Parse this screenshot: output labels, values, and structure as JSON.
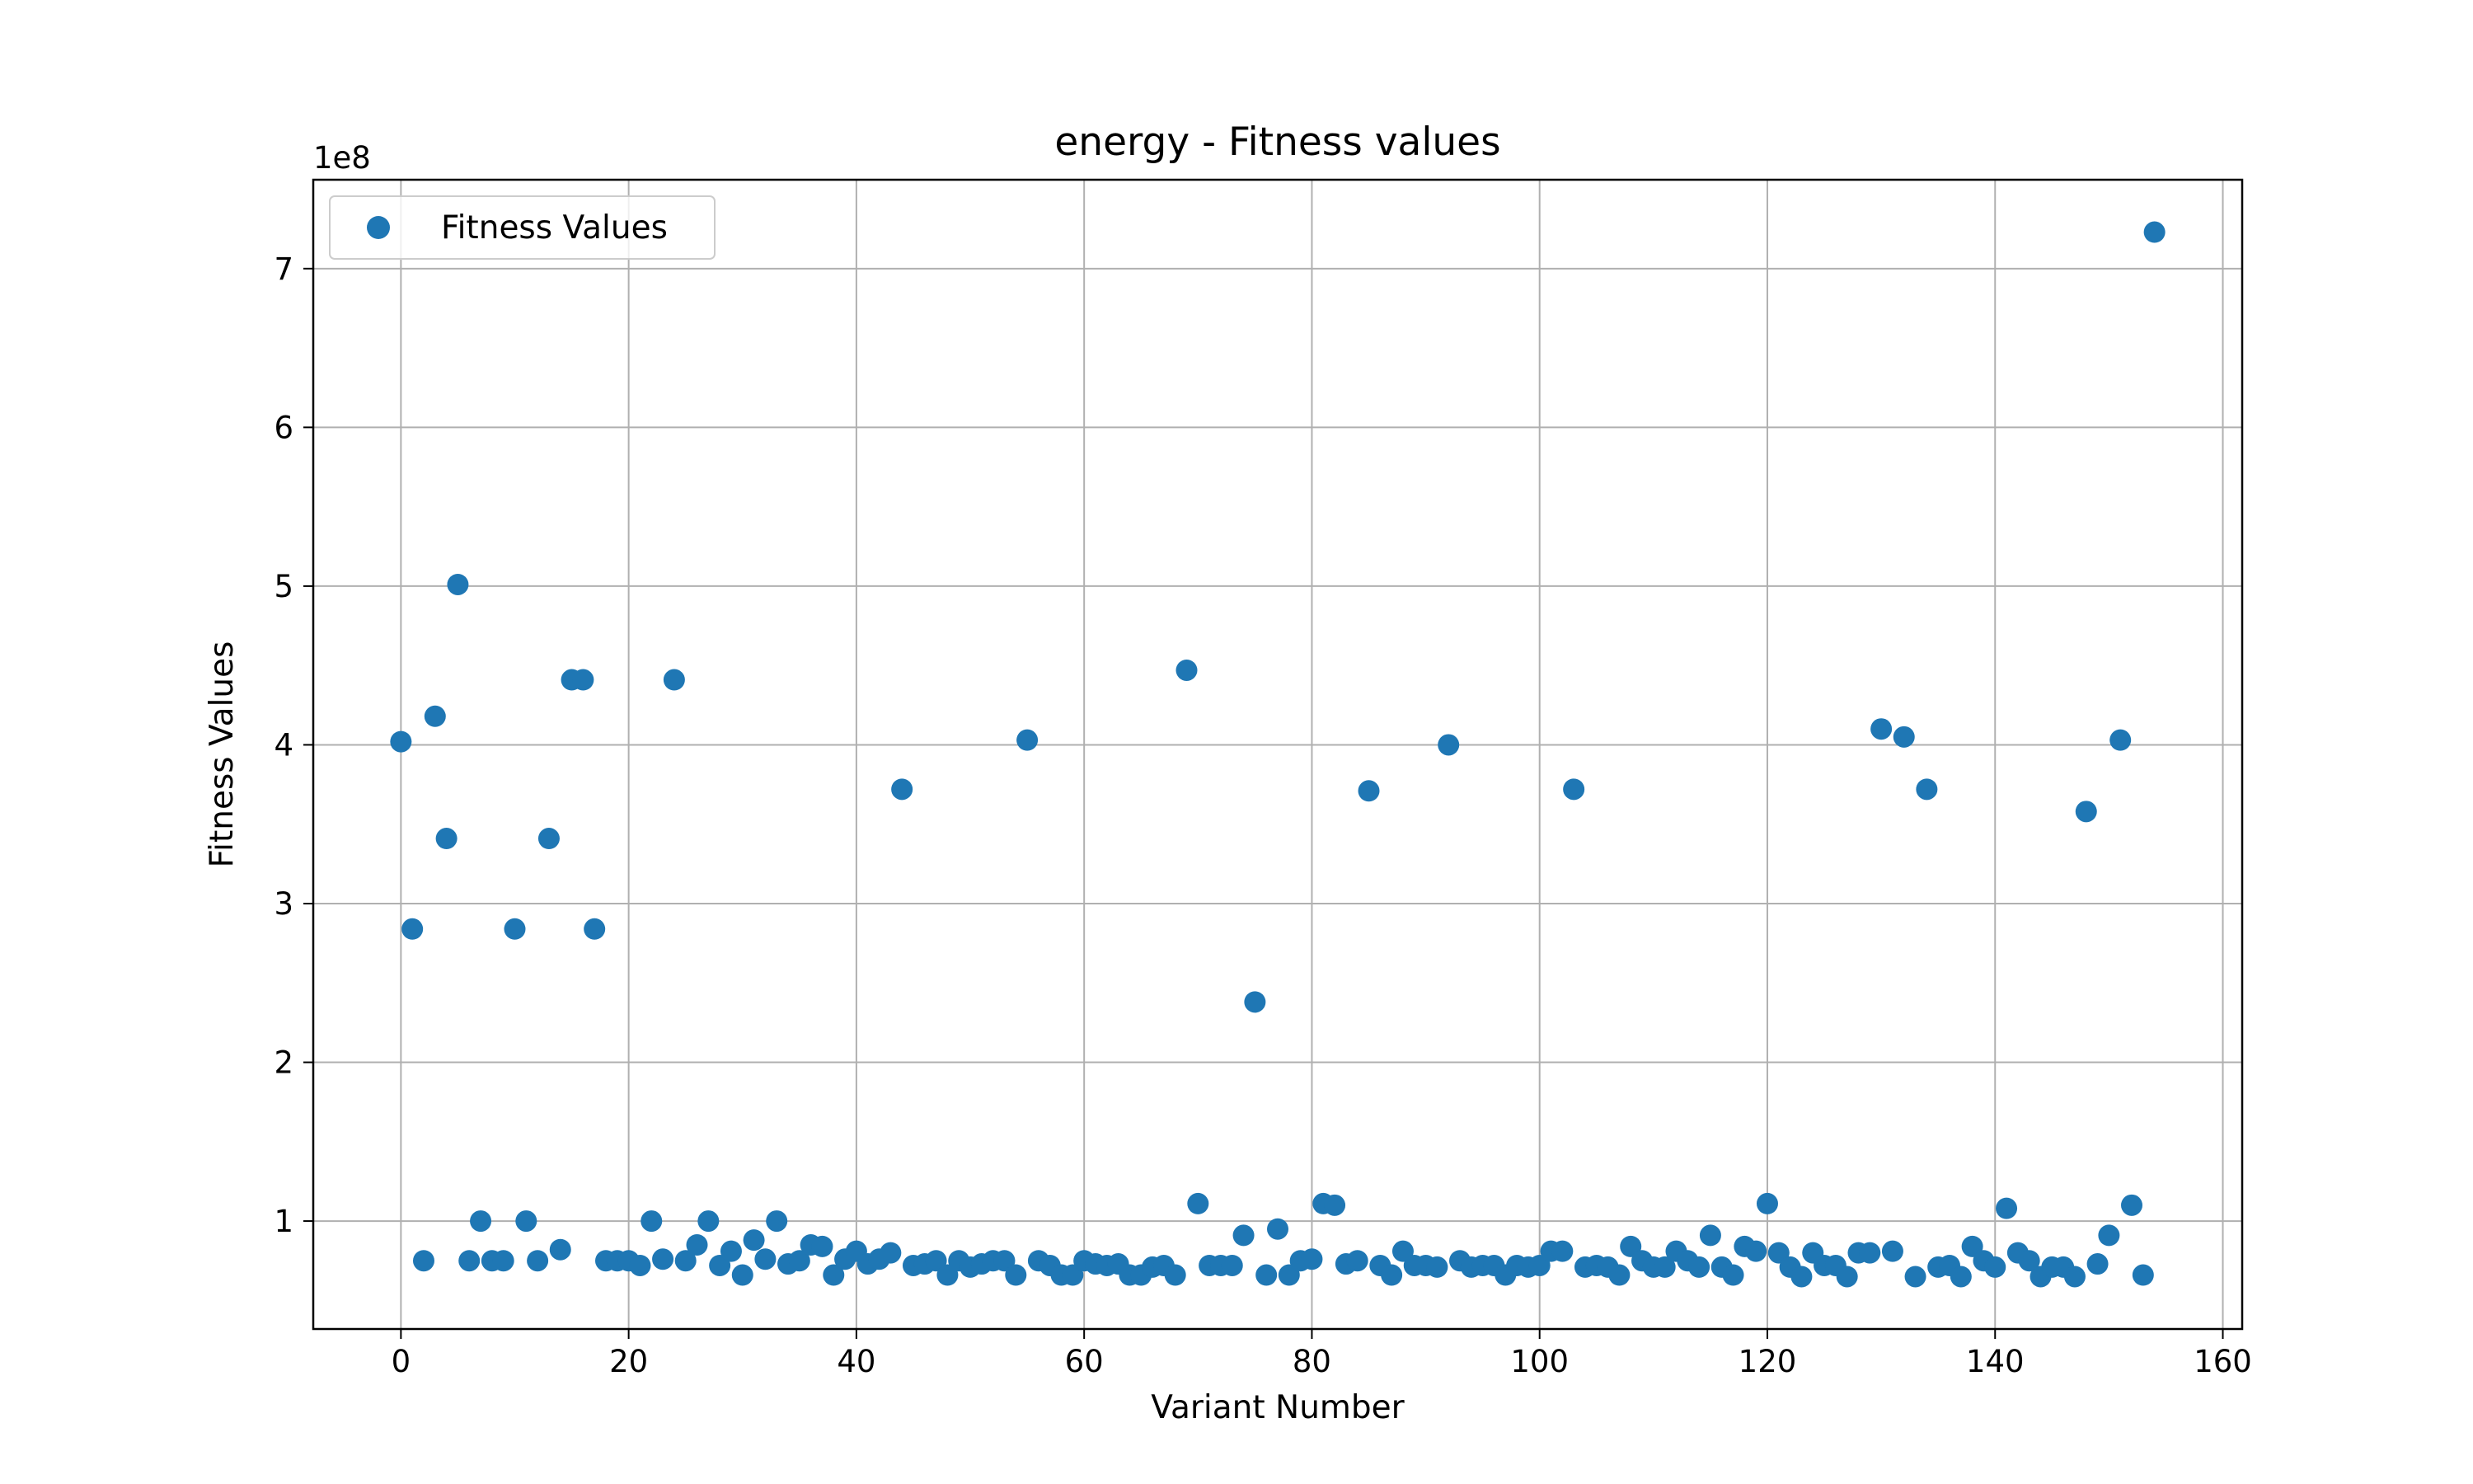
{
  "chart_data": {
    "type": "scatter",
    "title": "energy - Fitness values",
    "xlabel": "Variant Number",
    "ylabel": "Fitness Values",
    "y_offset_label": "1e8",
    "xlim": [
      -7.7,
      161.7
    ],
    "ylim": [
      0.32,
      7.56
    ],
    "xticks": [
      0,
      20,
      40,
      60,
      80,
      100,
      120,
      140,
      160
    ],
    "yticks": [
      1,
      2,
      3,
      4,
      5,
      6,
      7
    ],
    "grid": true,
    "legend": {
      "position": "top-left",
      "entries": [
        "Fitness Values"
      ]
    },
    "series": [
      {
        "name": "Fitness Values",
        "color": "#1f77b4",
        "x": [
          0,
          1,
          2,
          3,
          4,
          5,
          6,
          7,
          8,
          9,
          10,
          11,
          12,
          13,
          14,
          15,
          16,
          17,
          18,
          19,
          20,
          21,
          22,
          23,
          24,
          25,
          26,
          27,
          28,
          29,
          30,
          31,
          32,
          33,
          34,
          35,
          36,
          37,
          38,
          39,
          40,
          41,
          42,
          43,
          44,
          45,
          46,
          47,
          48,
          49,
          50,
          51,
          52,
          53,
          54,
          55,
          56,
          57,
          58,
          59,
          60,
          61,
          62,
          63,
          64,
          65,
          66,
          67,
          68,
          69,
          70,
          71,
          72,
          73,
          74,
          75,
          76,
          77,
          78,
          79,
          80,
          81,
          82,
          83,
          84,
          85,
          86,
          87,
          88,
          89,
          90,
          91,
          92,
          93,
          94,
          95,
          96,
          97,
          98,
          99,
          100,
          101,
          102,
          103,
          104,
          105,
          106,
          107,
          108,
          109,
          110,
          111,
          112,
          113,
          114,
          115,
          116,
          117,
          118,
          119,
          120,
          121,
          122,
          123,
          124,
          125,
          126,
          127,
          128,
          129,
          130,
          131,
          132,
          133,
          134,
          135,
          136,
          137,
          138,
          139,
          140,
          141,
          142,
          143,
          144,
          145,
          146,
          147,
          148,
          149,
          150,
          151,
          152,
          153,
          154
        ],
        "y": [
          4.02,
          2.84,
          0.75,
          4.18,
          3.41,
          5.01,
          0.75,
          1.0,
          0.75,
          0.75,
          2.84,
          1.0,
          0.75,
          3.41,
          0.82,
          4.41,
          4.41,
          2.84,
          0.75,
          0.75,
          0.75,
          0.72,
          1.0,
          0.76,
          4.41,
          0.75,
          0.85,
          1.0,
          0.72,
          0.81,
          0.66,
          0.88,
          0.76,
          1.0,
          0.73,
          0.75,
          0.85,
          0.84,
          0.66,
          0.76,
          0.81,
          0.73,
          0.76,
          0.8,
          3.72,
          0.72,
          0.73,
          0.75,
          0.66,
          0.75,
          0.71,
          0.73,
          0.75,
          0.75,
          0.66,
          4.03,
          0.75,
          0.72,
          0.66,
          0.66,
          0.75,
          0.73,
          0.72,
          0.73,
          0.66,
          0.66,
          0.71,
          0.72,
          0.66,
          4.47,
          1.11,
          0.72,
          0.72,
          0.72,
          0.91,
          2.38,
          0.66,
          0.95,
          0.66,
          0.75,
          0.76,
          1.11,
          1.1,
          0.73,
          0.75,
          3.71,
          0.72,
          0.66,
          0.81,
          0.72,
          0.72,
          0.71,
          4.0,
          0.75,
          0.71,
          0.72,
          0.72,
          0.66,
          0.72,
          0.71,
          0.72,
          0.81,
          0.81,
          3.72,
          0.71,
          0.72,
          0.71,
          0.66,
          0.84,
          0.75,
          0.71,
          0.71,
          0.81,
          0.75,
          0.71,
          0.91,
          0.71,
          0.66,
          0.84,
          0.81,
          1.11,
          0.8,
          0.71,
          0.65,
          0.8,
          0.72,
          0.72,
          0.65,
          0.8,
          0.8,
          4.1,
          0.81,
          4.05,
          0.65,
          3.72,
          0.71,
          0.72,
          0.65,
          0.84,
          0.75,
          0.71,
          1.08,
          0.8,
          0.75,
          0.65,
          0.71,
          0.71,
          0.65,
          3.58,
          0.73,
          0.91,
          4.03,
          1.1,
          0.66,
          7.23
        ]
      }
    ]
  }
}
